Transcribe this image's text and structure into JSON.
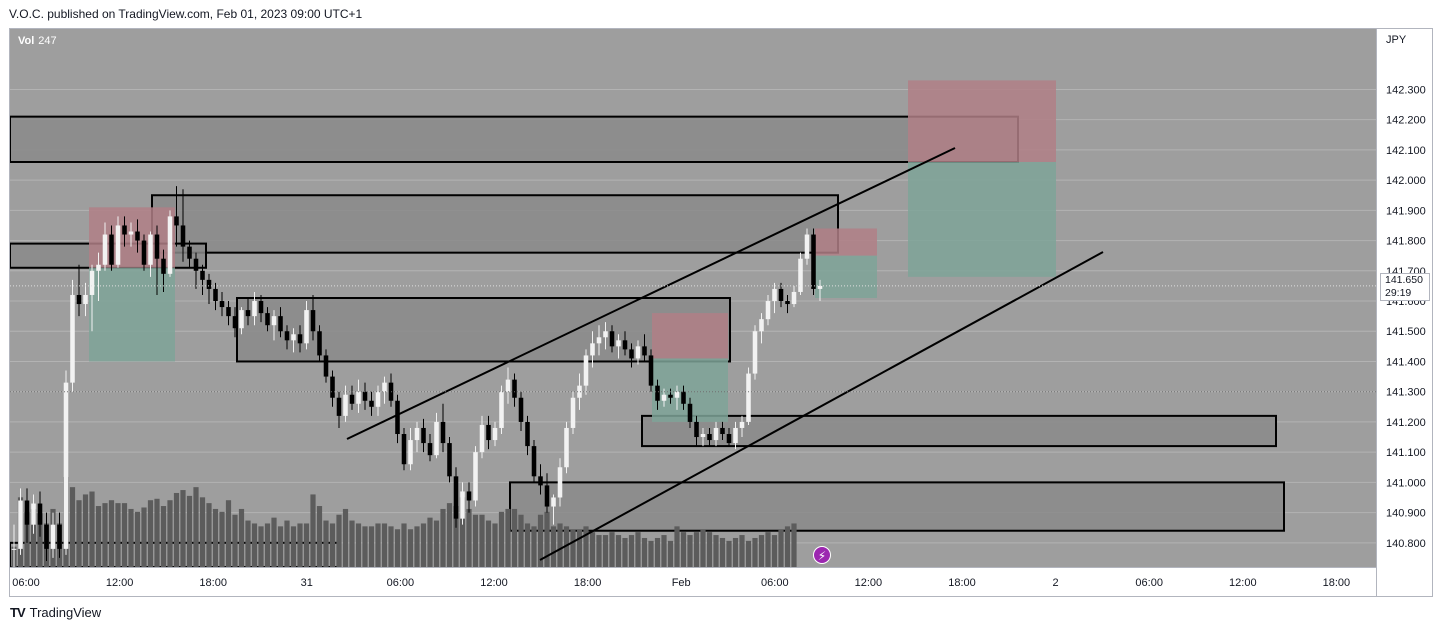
{
  "header": {
    "publisher_line": "V.O.C. published on TradingView.com, Feb 01, 2023 09:00 UTC+1"
  },
  "volume_legend": {
    "label": "Vol",
    "value": "247"
  },
  "currency_label": "JPY",
  "last_price": {
    "price": "141.650",
    "countdown": "29:19"
  },
  "footer": {
    "logo_mark": "TV",
    "brand": "TradingView"
  },
  "colors": {
    "chart_bg": "#9e9e9e",
    "grid": "#b3b3b3",
    "bull_candle": "#f2f2f2",
    "bear_candle": "#000000",
    "volume_bar": "#5c5c5c",
    "zone_fill": "#8a8a8a",
    "stop_fill": "#b07f86",
    "target_fill": "#7ea398",
    "axis_bg": "#ffffff",
    "event_icon": "#9c27b0"
  },
  "icons": {
    "event_marker": "lightning-icon",
    "logo": "tradingview-logo-icon"
  },
  "chart_data": {
    "type": "candlestick",
    "instrument_quote": "JPY",
    "ylim": [
      140.72,
      142.5
    ],
    "y_ticks": [
      "142.300",
      "142.200",
      "142.100",
      "142.000",
      "141.900",
      "141.800",
      "141.700",
      "141.600",
      "141.500",
      "141.400",
      "141.300",
      "141.200",
      "141.100",
      "141.000",
      "140.900",
      "140.800"
    ],
    "x_ticks": [
      "06:00",
      "12:00",
      "18:00",
      "31",
      "06:00",
      "12:00",
      "18:00",
      "Feb",
      "06:00",
      "12:00",
      "18:00",
      "2",
      "06:00",
      "12:00",
      "18:00"
    ],
    "candles_ohlc": [
      [
        140.78,
        140.86,
        140.7,
        140.78
      ],
      [
        140.78,
        140.98,
        140.76,
        140.94
      ],
      [
        140.94,
        140.98,
        140.8,
        140.86
      ],
      [
        140.86,
        140.96,
        140.83,
        140.93
      ],
      [
        140.93,
        140.97,
        140.82,
        140.86
      ],
      [
        140.86,
        140.9,
        140.74,
        140.78
      ],
      [
        140.78,
        140.9,
        140.75,
        140.86
      ],
      [
        140.86,
        140.9,
        140.75,
        140.78
      ],
      [
        140.78,
        141.37,
        140.76,
        141.33
      ],
      [
        141.33,
        141.67,
        141.3,
        141.62
      ],
      [
        141.62,
        141.72,
        141.55,
        141.59
      ],
      [
        141.59,
        141.66,
        141.55,
        141.62
      ],
      [
        141.62,
        141.72,
        141.5,
        141.7
      ],
      [
        141.7,
        141.76,
        141.6,
        141.72
      ],
      [
        141.72,
        141.86,
        141.7,
        141.82
      ],
      [
        141.82,
        141.85,
        141.7,
        141.72
      ],
      [
        141.72,
        141.88,
        141.71,
        141.85
      ],
      [
        141.85,
        141.88,
        141.78,
        141.82
      ],
      [
        141.82,
        141.86,
        141.78,
        141.83
      ],
      [
        141.83,
        141.87,
        141.76,
        141.8
      ],
      [
        141.8,
        141.82,
        141.7,
        141.72
      ],
      [
        141.72,
        141.83,
        141.68,
        141.82
      ],
      [
        141.82,
        141.85,
        141.62,
        141.74
      ],
      [
        141.74,
        141.77,
        141.63,
        141.69
      ],
      [
        141.69,
        141.9,
        141.68,
        141.88
      ],
      [
        141.88,
        141.98,
        141.78,
        141.85
      ],
      [
        141.85,
        141.97,
        141.73,
        141.78
      ],
      [
        141.78,
        141.8,
        141.71,
        141.74
      ],
      [
        141.74,
        141.76,
        141.64,
        141.7
      ],
      [
        141.7,
        141.72,
        141.62,
        141.67
      ],
      [
        141.67,
        141.69,
        141.59,
        141.64
      ],
      [
        141.64,
        141.66,
        141.57,
        141.6
      ],
      [
        141.6,
        141.63,
        141.55,
        141.58
      ],
      [
        141.58,
        141.6,
        141.52,
        141.55
      ],
      [
        141.55,
        141.58,
        141.48,
        141.51
      ],
      [
        141.51,
        141.58,
        141.49,
        141.57
      ],
      [
        141.57,
        141.61,
        141.52,
        141.55
      ],
      [
        141.55,
        141.63,
        141.52,
        141.6
      ],
      [
        141.6,
        141.62,
        141.53,
        141.56
      ],
      [
        141.56,
        141.58,
        141.5,
        141.52
      ],
      [
        141.52,
        141.57,
        141.47,
        141.55
      ],
      [
        141.55,
        141.58,
        141.48,
        141.5
      ],
      [
        141.5,
        141.52,
        141.44,
        141.47
      ],
      [
        141.47,
        141.51,
        141.43,
        141.49
      ],
      [
        141.49,
        141.52,
        141.43,
        141.46
      ],
      [
        141.46,
        141.6,
        141.44,
        141.57
      ],
      [
        141.57,
        141.62,
        141.47,
        141.5
      ],
      [
        141.5,
        141.52,
        141.4,
        141.42
      ],
      [
        141.42,
        141.44,
        141.33,
        141.35
      ],
      [
        141.35,
        141.37,
        141.25,
        141.28
      ],
      [
        141.28,
        141.3,
        141.18,
        141.22
      ],
      [
        141.22,
        141.32,
        141.2,
        141.29
      ],
      [
        141.29,
        141.32,
        141.24,
        141.26
      ],
      [
        141.26,
        141.34,
        141.23,
        141.3
      ],
      [
        141.3,
        141.33,
        141.24,
        141.27
      ],
      [
        141.27,
        141.3,
        141.22,
        141.25
      ],
      [
        141.25,
        141.32,
        141.22,
        141.3
      ],
      [
        141.3,
        141.35,
        141.26,
        141.33
      ],
      [
        141.33,
        141.36,
        141.25,
        141.27
      ],
      [
        141.27,
        141.29,
        141.13,
        141.16
      ],
      [
        141.16,
        141.18,
        141.04,
        141.06
      ],
      [
        141.06,
        141.18,
        141.04,
        141.14
      ],
      [
        141.14,
        141.2,
        141.1,
        141.18
      ],
      [
        141.18,
        141.21,
        141.1,
        141.13
      ],
      [
        141.13,
        141.16,
        141.07,
        141.09
      ],
      [
        141.09,
        141.23,
        141.08,
        141.2
      ],
      [
        141.2,
        141.26,
        141.1,
        141.13
      ],
      [
        141.13,
        141.15,
        141.0,
        141.02
      ],
      [
        141.02,
        141.05,
        140.85,
        140.88
      ],
      [
        140.88,
        141.0,
        140.86,
        140.97
      ],
      [
        140.97,
        141.0,
        140.9,
        140.94
      ],
      [
        140.94,
        141.12,
        140.92,
        141.1
      ],
      [
        141.1,
        141.22,
        141.08,
        141.19
      ],
      [
        141.19,
        141.22,
        141.11,
        141.14
      ],
      [
        141.14,
        141.2,
        141.12,
        141.18
      ],
      [
        141.18,
        141.32,
        141.16,
        141.3
      ],
      [
        141.3,
        141.38,
        141.26,
        141.34
      ],
      [
        141.34,
        141.36,
        141.25,
        141.28
      ],
      [
        141.28,
        141.3,
        141.17,
        141.2
      ],
      [
        141.2,
        141.22,
        141.09,
        141.12
      ],
      [
        141.12,
        141.14,
        141.0,
        141.02
      ],
      [
        141.02,
        141.06,
        140.96,
        140.99
      ],
      [
        140.99,
        141.03,
        140.9,
        140.92
      ],
      [
        140.92,
        140.96,
        140.86,
        140.95
      ],
      [
        140.95,
        141.08,
        140.92,
        141.05
      ],
      [
        141.05,
        141.2,
        141.03,
        141.18
      ],
      [
        141.18,
        141.3,
        141.16,
        141.28
      ],
      [
        141.28,
        141.36,
        141.24,
        141.32
      ],
      [
        141.32,
        141.44,
        141.29,
        141.42
      ],
      [
        141.42,
        141.5,
        141.38,
        141.46
      ],
      [
        141.46,
        141.52,
        141.42,
        141.48
      ],
      [
        141.48,
        141.53,
        141.44,
        141.5
      ],
      [
        141.5,
        141.52,
        141.43,
        141.45
      ],
      [
        141.45,
        141.49,
        141.41,
        141.47
      ],
      [
        141.47,
        141.5,
        141.42,
        141.44
      ],
      [
        141.44,
        141.46,
        141.38,
        141.41
      ],
      [
        141.41,
        141.47,
        141.39,
        141.45
      ],
      [
        141.45,
        141.49,
        141.4,
        141.42
      ],
      [
        141.42,
        141.44,
        141.3,
        141.32
      ],
      [
        141.32,
        141.34,
        141.24,
        141.27
      ],
      [
        141.27,
        141.31,
        141.25,
        141.29
      ],
      [
        141.29,
        141.31,
        141.26,
        141.28
      ],
      [
        141.28,
        141.32,
        141.24,
        141.3
      ],
      [
        141.3,
        141.32,
        141.24,
        141.26
      ],
      [
        141.26,
        141.28,
        141.18,
        141.2
      ],
      [
        141.2,
        141.22,
        141.12,
        141.15
      ],
      [
        141.15,
        141.18,
        141.12,
        141.16
      ],
      [
        141.16,
        141.18,
        141.12,
        141.14
      ],
      [
        141.14,
        141.2,
        141.12,
        141.18
      ],
      [
        141.18,
        141.2,
        141.14,
        141.16
      ],
      [
        141.16,
        141.18,
        141.12,
        141.13
      ],
      [
        141.13,
        141.2,
        141.11,
        141.18
      ],
      [
        141.18,
        141.22,
        141.15,
        141.2
      ],
      [
        141.2,
        141.38,
        141.19,
        141.36
      ],
      [
        141.36,
        141.52,
        141.34,
        141.5
      ],
      [
        141.5,
        141.56,
        141.46,
        141.54
      ],
      [
        141.54,
        141.62,
        141.52,
        141.6
      ],
      [
        141.6,
        141.66,
        141.56,
        141.64
      ],
      [
        141.64,
        141.66,
        141.58,
        141.6
      ],
      [
        141.6,
        141.62,
        141.56,
        141.59
      ],
      [
        141.59,
        141.65,
        141.58,
        141.63
      ],
      [
        141.63,
        141.76,
        141.62,
        141.74
      ],
      [
        141.74,
        141.84,
        141.72,
        141.82
      ],
      [
        141.82,
        141.84,
        141.62,
        141.64
      ],
      [
        141.64,
        141.67,
        141.6,
        141.65
      ]
    ],
    "volume": [
      14,
      48,
      38,
      40,
      37,
      30,
      40,
      30,
      62,
      55,
      46,
      50,
      52,
      42,
      44,
      46,
      44,
      44,
      40,
      38,
      41,
      46,
      47,
      42,
      46,
      51,
      53,
      49,
      55,
      48,
      44,
      40,
      38,
      46,
      36,
      40,
      32,
      30,
      28,
      30,
      34,
      28,
      32,
      28,
      30,
      30,
      50,
      42,
      32,
      30,
      36,
      40,
      32,
      30,
      28,
      28,
      30,
      30,
      28,
      26,
      30,
      26,
      28,
      30,
      34,
      32,
      40,
      44,
      42,
      48,
      40,
      36,
      36,
      32,
      30,
      38,
      40,
      40,
      36,
      30,
      28,
      36,
      38,
      28,
      30,
      28,
      26,
      26,
      28,
      24,
      22,
      22,
      24,
      22,
      20,
      22,
      24,
      20,
      18,
      20,
      22,
      18,
      28,
      24,
      22,
      24,
      26,
      24,
      22,
      20,
      18,
      20,
      22,
      18,
      20,
      22,
      24,
      22,
      26,
      28,
      30
    ],
    "y_min": 140.72,
    "y_max": 142.5
  }
}
